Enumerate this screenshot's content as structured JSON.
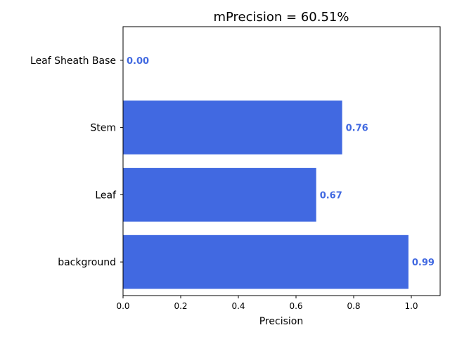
{
  "chart_data": {
    "type": "bar",
    "orientation": "horizontal",
    "title": "mPrecision = 60.51%",
    "xlabel": "Precision",
    "ylabel": "",
    "categories": [
      "background",
      "Leaf",
      "Stem",
      "Leaf Sheath Base"
    ],
    "values": [
      0.99,
      0.67,
      0.76,
      0.0
    ],
    "data_labels": [
      "0.99",
      "0.67",
      "0.76",
      "0.00"
    ],
    "xlim": [
      0,
      1.1
    ],
    "xticks": [
      0.0,
      0.2,
      0.4,
      0.6,
      0.8,
      1.0
    ],
    "xtick_labels": [
      "0.0",
      "0.2",
      "0.4",
      "0.6",
      "0.8",
      "1.0"
    ],
    "grid": false,
    "legend": "none",
    "bar_color": "#4169E1",
    "label_color": "#4169E1"
  }
}
